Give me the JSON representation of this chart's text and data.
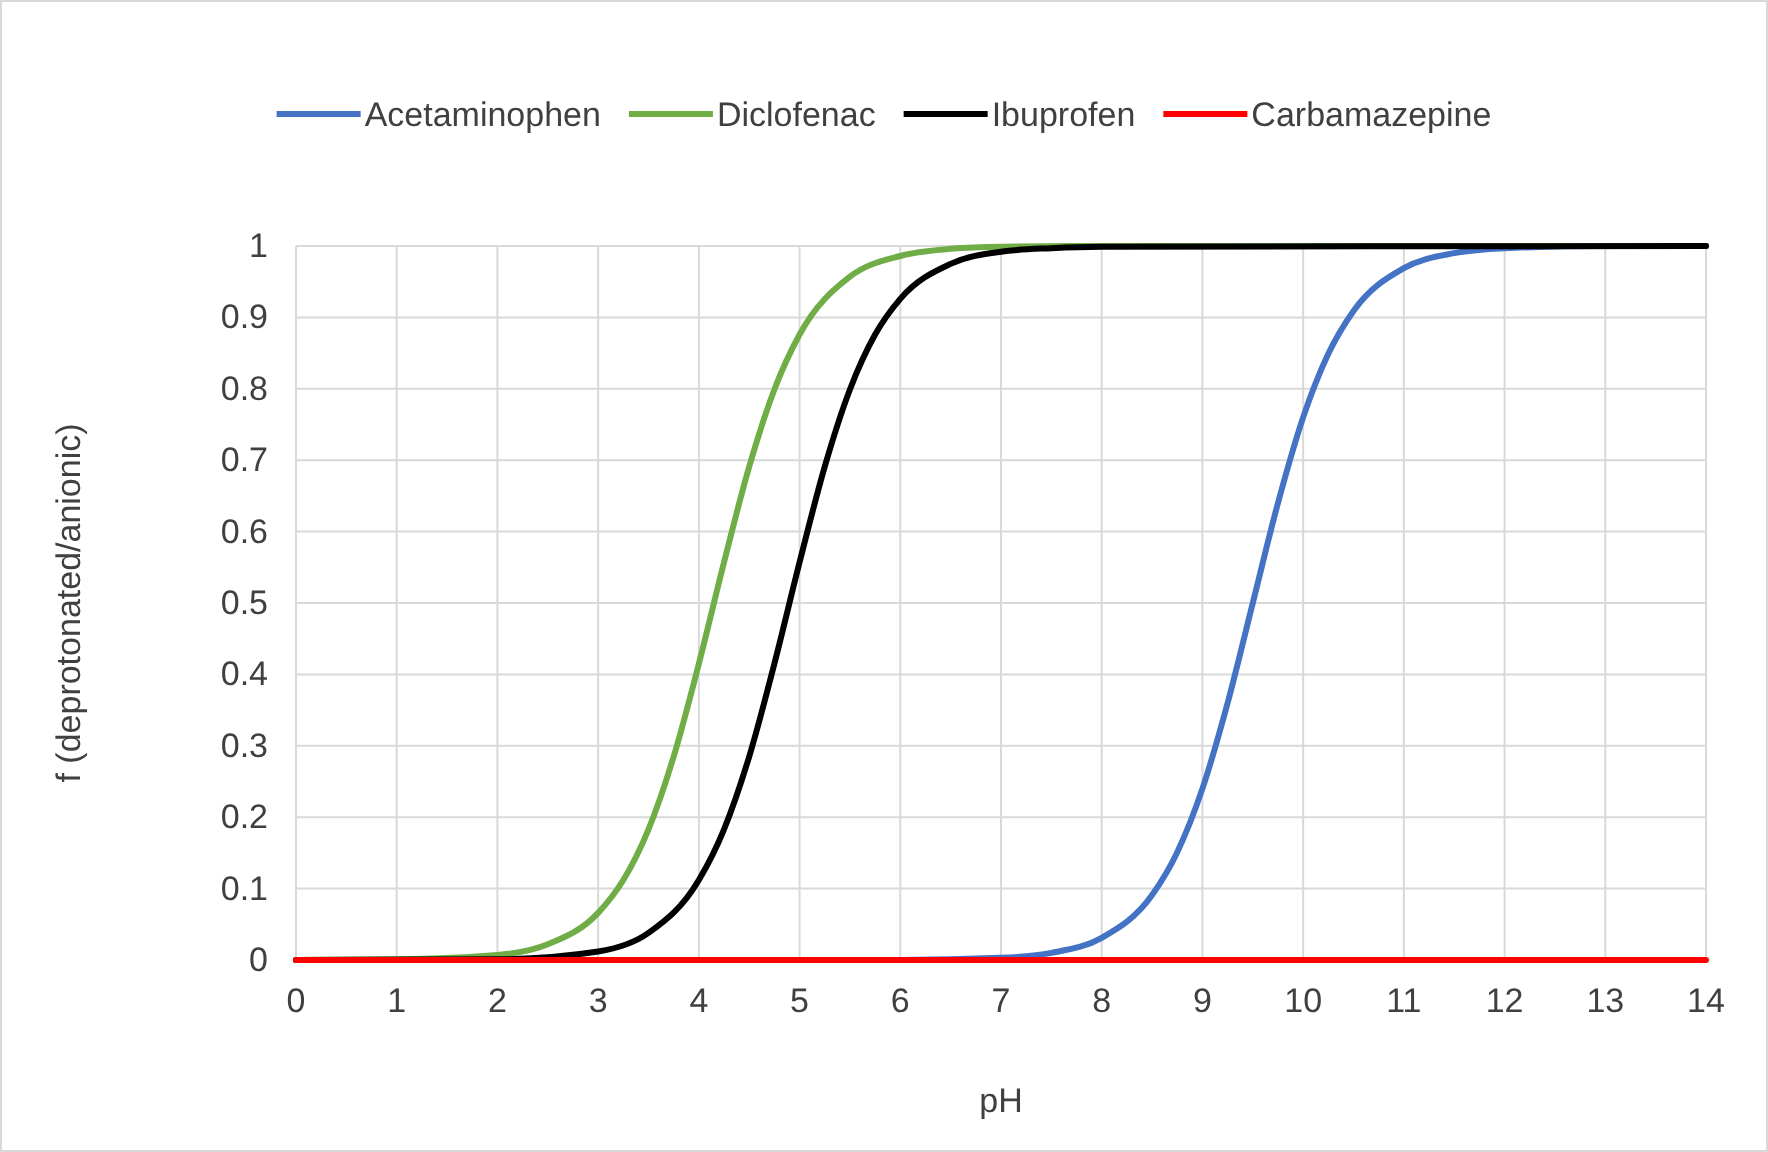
{
  "chart_data": {
    "type": "line",
    "xlabel": "pH",
    "ylabel": "f (deprotonated/anionic)",
    "xlim": [
      0,
      14
    ],
    "ylim": [
      0,
      1
    ],
    "xticks": [
      0,
      1,
      2,
      3,
      4,
      5,
      6,
      7,
      8,
      9,
      10,
      11,
      12,
      13,
      14
    ],
    "yticks": [
      0,
      0.1,
      0.2,
      0.3,
      0.4,
      0.5,
      0.6,
      0.7,
      0.8,
      0.9,
      1
    ],
    "grid": true,
    "legend": "top",
    "marker": "none",
    "line_style": "solid",
    "series": [
      {
        "name": "Acetaminophen",
        "color": "#4472c4",
        "x": [
          0,
          6,
          7,
          7.5,
          8,
          8.5,
          8.75,
          9,
          9.25,
          9.5,
          9.75,
          10,
          10.25,
          10.5,
          11,
          11.5,
          12,
          13,
          14
        ],
        "values": [
          0,
          0,
          0.003,
          0.01,
          0.031,
          0.091,
          0.151,
          0.24,
          0.36,
          0.5,
          0.64,
          0.76,
          0.849,
          0.909,
          0.969,
          0.99,
          0.997,
          1,
          1
        ]
      },
      {
        "name": "Diclofenac",
        "color": "#70ad47",
        "x": [
          0,
          1,
          2,
          2.5,
          3,
          3.25,
          3.5,
          3.75,
          4,
          4.25,
          4.5,
          4.75,
          5,
          5.5,
          6,
          6.5,
          7,
          8,
          14
        ],
        "values": [
          0,
          0.001,
          0.007,
          0.022,
          0.066,
          0.112,
          0.183,
          0.285,
          0.415,
          0.557,
          0.691,
          0.799,
          0.876,
          0.957,
          0.986,
          0.996,
          0.999,
          1,
          1
        ]
      },
      {
        "name": "Ibuprofen",
        "color": "#000000",
        "x": [
          0,
          2,
          3,
          3.5,
          4,
          4.25,
          4.5,
          4.75,
          5,
          5.25,
          5.5,
          5.75,
          6,
          6.5,
          7,
          7.5,
          8,
          14
        ],
        "values": [
          0,
          0.001,
          0.012,
          0.038,
          0.112,
          0.183,
          0.285,
          0.415,
          0.557,
          0.691,
          0.799,
          0.876,
          0.926,
          0.975,
          0.992,
          0.997,
          0.999,
          1
        ]
      },
      {
        "name": "Carbamazepine",
        "color": "#ff0000",
        "x": [
          0,
          14
        ],
        "values": [
          0,
          0
        ]
      }
    ]
  }
}
